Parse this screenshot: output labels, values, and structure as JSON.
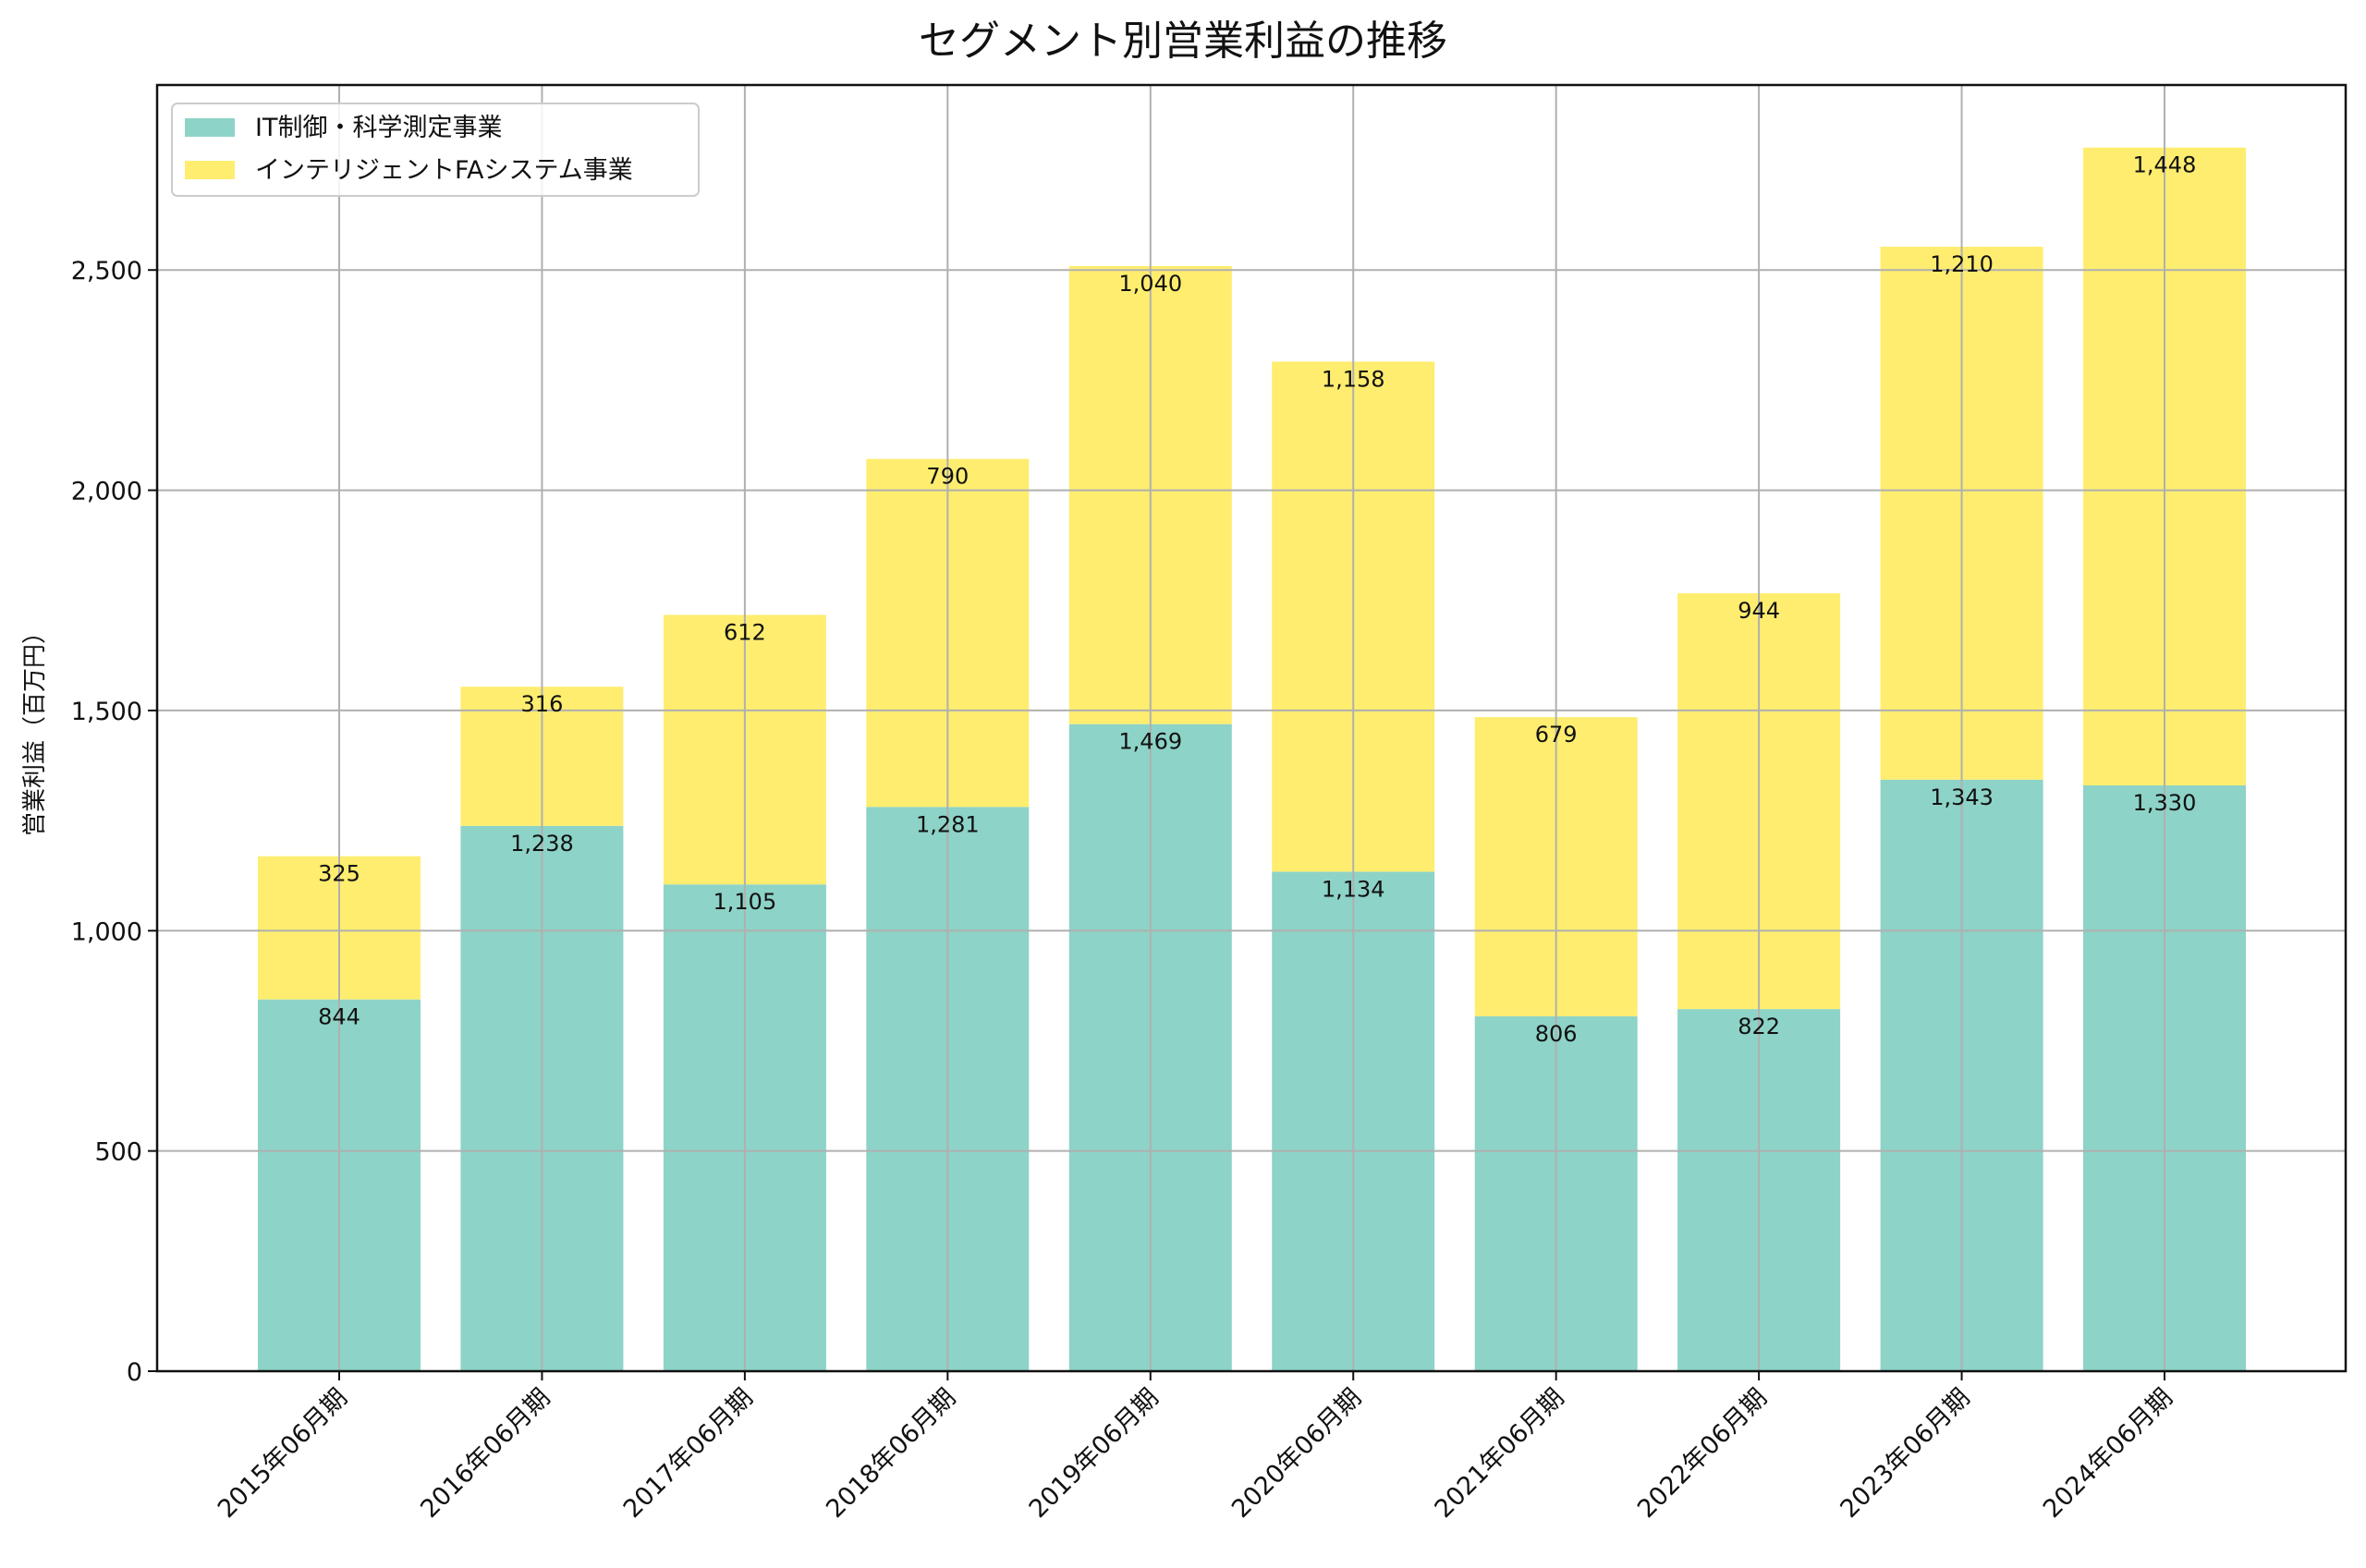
{
  "chart_data": {
    "type": "bar",
    "stacked": true,
    "title": "セグメント別営業利益の推移",
    "xlabel": "",
    "ylabel": "営業利益（百万円）",
    "ylim": [
      0,
      2920
    ],
    "yticks": [
      0,
      500,
      1000,
      1500,
      2000,
      2500
    ],
    "ytick_labels": [
      "0",
      "500",
      "1,000",
      "1,500",
      "2,000",
      "2,500"
    ],
    "grid": true,
    "legend_position": "top-left",
    "categories": [
      "2015年06月期",
      "2016年06月期",
      "2017年06月期",
      "2018年06月期",
      "2019年06月期",
      "2020年06月期",
      "2021年06月期",
      "2022年06月期",
      "2023年06月期",
      "2024年06月期"
    ],
    "series": [
      {
        "name": "IT制御・科学測定事業",
        "color": "#8dd3c7",
        "values": [
          844,
          1238,
          1105,
          1281,
          1469,
          1134,
          806,
          822,
          1343,
          1330
        ],
        "labels": [
          "844",
          "1,238",
          "1,105",
          "1,281",
          "1,469",
          "1,134",
          "806",
          "822",
          "1,343",
          "1,330"
        ]
      },
      {
        "name": "インテリジェントFAシステム事業",
        "color": "#ffed6f",
        "values": [
          325,
          316,
          612,
          790,
          1040,
          1158,
          679,
          944,
          1210,
          1448
        ],
        "labels": [
          "325",
          "316",
          "612",
          "790",
          "1,040",
          "1,158",
          "679",
          "944",
          "1,210",
          "1,448"
        ]
      }
    ]
  }
}
